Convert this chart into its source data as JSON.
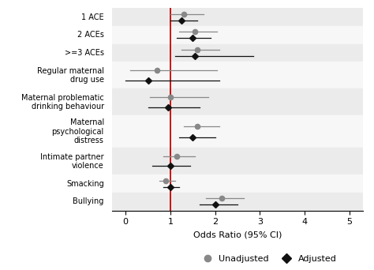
{
  "categories": [
    "1 ACE",
    "2 ACEs",
    ">=3 ACEs",
    "Regular maternal\ndrug use",
    "Maternal problematic\ndrinking behaviour",
    "Maternal\npsychological\ndistress",
    "Intimate partner\nviolence",
    "Smacking",
    "Bullying"
  ],
  "unadjusted": [
    {
      "or": 1.3,
      "lo": 1.0,
      "hi": 1.75
    },
    {
      "or": 1.55,
      "lo": 1.2,
      "hi": 2.05
    },
    {
      "or": 1.6,
      "lo": 1.25,
      "hi": 2.1
    },
    {
      "or": 0.7,
      "lo": 0.1,
      "hi": 2.05
    },
    {
      "or": 1.0,
      "lo": 0.55,
      "hi": 1.85
    },
    {
      "or": 1.6,
      "lo": 1.3,
      "hi": 2.1
    },
    {
      "or": 1.15,
      "lo": 0.85,
      "hi": 1.55
    },
    {
      "or": 0.9,
      "lo": 0.75,
      "hi": 1.1
    },
    {
      "or": 2.15,
      "lo": 1.8,
      "hi": 2.65
    }
  ],
  "adjusted": [
    {
      "or": 1.25,
      "lo": 1.0,
      "hi": 1.6
    },
    {
      "or": 1.5,
      "lo": 1.15,
      "hi": 1.9
    },
    {
      "or": 1.55,
      "lo": 1.1,
      "hi": 2.85
    },
    {
      "or": 0.5,
      "lo": 0.0,
      "hi": 2.1
    },
    {
      "or": 0.95,
      "lo": 0.5,
      "hi": 1.65
    },
    {
      "or": 1.5,
      "lo": 1.2,
      "hi": 2.0
    },
    {
      "or": 1.0,
      "lo": 0.6,
      "hi": 1.45
    },
    {
      "or": 1.0,
      "lo": 0.85,
      "hi": 1.2
    },
    {
      "or": 2.0,
      "lo": 1.65,
      "hi": 2.5
    }
  ],
  "unadj_color": "#888888",
  "adj_color": "#111111",
  "ref_line_color": "#cc0000",
  "xlim": [
    -0.3,
    5.3
  ],
  "xticks": [
    0,
    1,
    2,
    3,
    4,
    5
  ],
  "xlabel": "Odds Ratio (95% CI)",
  "row_colors": [
    "#ebebeb",
    "#f7f7f7"
  ]
}
